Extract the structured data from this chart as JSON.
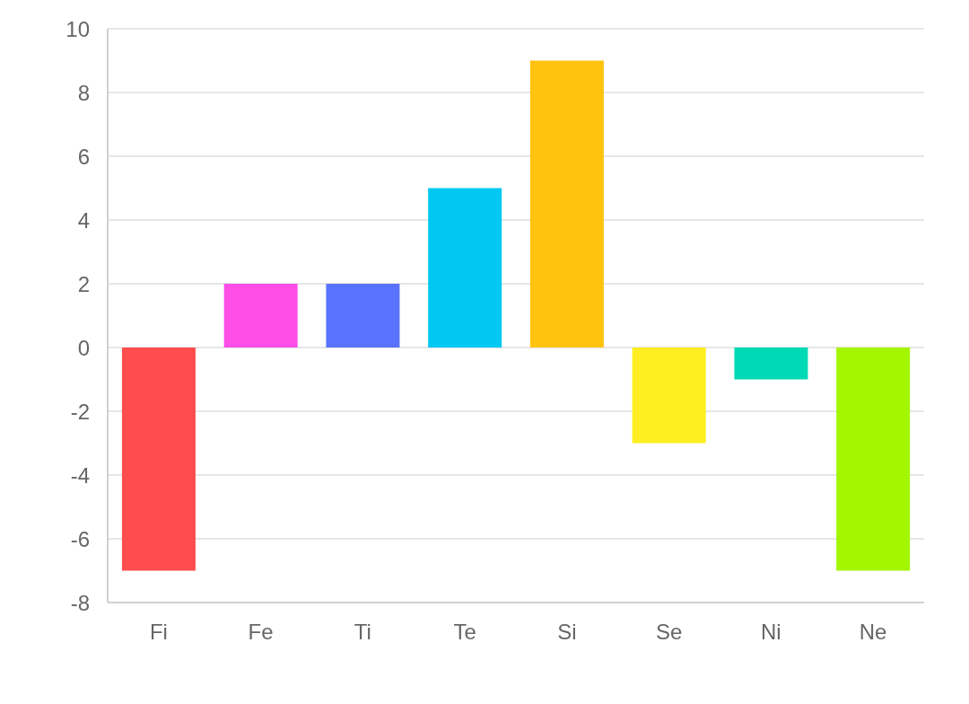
{
  "chart_data": {
    "type": "bar",
    "categories": [
      "Fi",
      "Fe",
      "Ti",
      "Te",
      "Si",
      "Se",
      "Ni",
      "Ne"
    ],
    "values": [
      -7,
      2,
      2,
      5,
      9,
      -3,
      -1,
      -7
    ],
    "colors": [
      "#ff4d4d",
      "#ff4de8",
      "#5a73ff",
      "#00c8f2",
      "#ffc20e",
      "#ffee22",
      "#00d9b5",
      "#a3f500"
    ],
    "ylim": [
      -8,
      10
    ],
    "yticks": [
      -8,
      -6,
      -4,
      -2,
      0,
      2,
      4,
      6,
      8,
      10
    ],
    "grid": "y"
  }
}
